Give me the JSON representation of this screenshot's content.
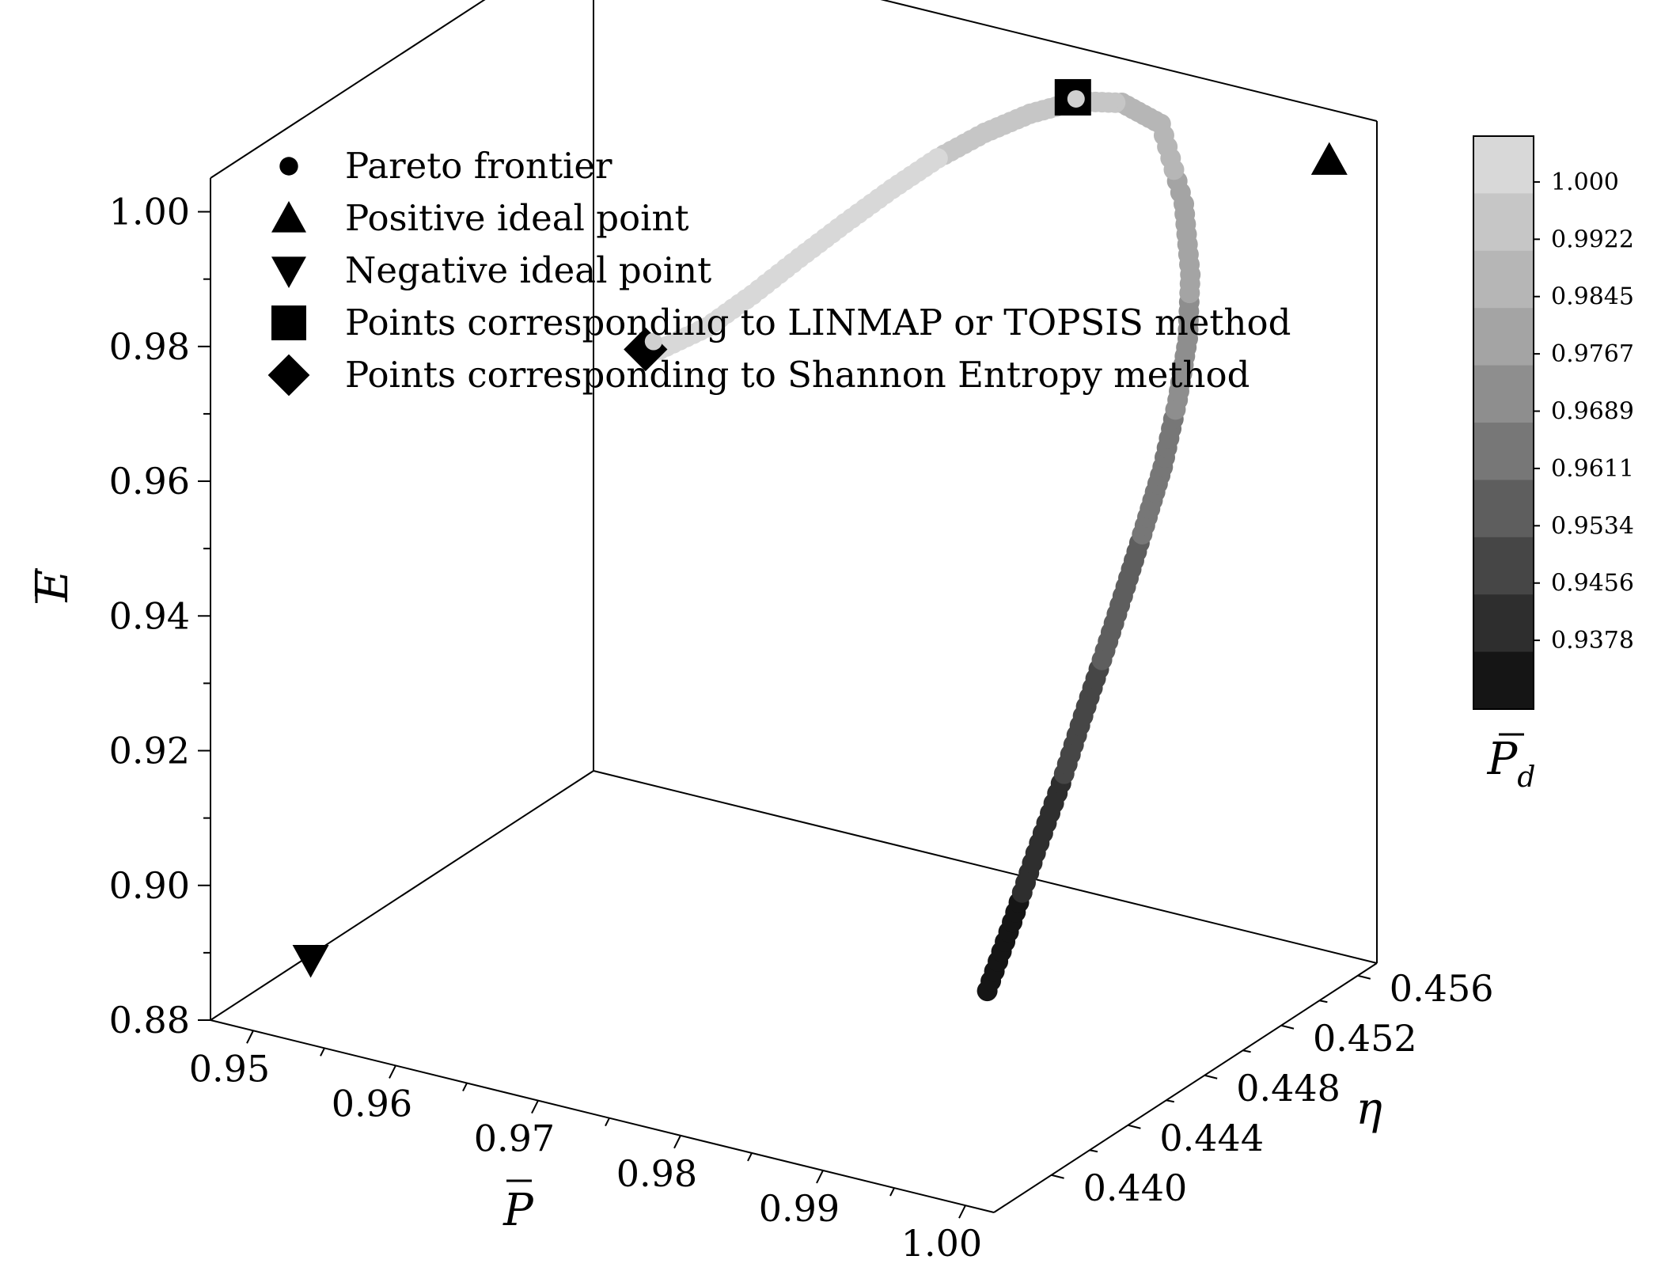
{
  "chart_data": {
    "type": "scatter",
    "title": "",
    "axes": {
      "x": {
        "label": "P",
        "overline": true,
        "range": [
          0.947,
          1.002
        ],
        "ticks": [
          "0.95",
          "0.96",
          "0.97",
          "0.98",
          "0.99",
          "1.00"
        ]
      },
      "y": {
        "label": "η",
        "overline": false,
        "range": [
          0.437,
          0.457
        ],
        "ticks": [
          "0.440",
          "0.444",
          "0.448",
          "0.452",
          "0.456"
        ]
      },
      "z": {
        "label": "E",
        "overline": true,
        "range": [
          0.88,
          1.005
        ],
        "ticks": [
          "0.88",
          "0.90",
          "0.92",
          "0.94",
          "0.96",
          "0.98",
          "1.00"
        ]
      }
    },
    "colorbar": {
      "label": "P",
      "label_subscript": "d",
      "overline": true,
      "ticks": [
        "1.000",
        "0.9922",
        "0.9845",
        "0.9767",
        "0.9689",
        "0.9611",
        "0.9534",
        "0.9456",
        "0.9378"
      ],
      "colors": [
        "#d8d8d8",
        "#c6c6c6",
        "#b6b6b6",
        "#a4a4a4",
        "#8e8e8e",
        "#777777",
        "#5e5e5e",
        "#464646",
        "#2e2e2e",
        "#151515"
      ]
    },
    "legend": {
      "position": "top-left",
      "entries": [
        {
          "marker": "circle",
          "label": "Pareto frontier"
        },
        {
          "marker": "triangle-up",
          "label": "Positive ideal point"
        },
        {
          "marker": "triangle-down",
          "label": "Negative ideal point"
        },
        {
          "marker": "square",
          "label": "Points corresponding to LINMAP or TOPSIS method"
        },
        {
          "marker": "diamond",
          "label": "Points corresponding to Shannon Entropy method"
        }
      ]
    },
    "special_points": [
      {
        "name": "positive-ideal",
        "marker": "triangle-up",
        "P": 1.0,
        "eta": 0.456,
        "E": 1.0
      },
      {
        "name": "negative-ideal",
        "marker": "triangle-down",
        "P": 0.95,
        "eta": 0.44,
        "E": 0.885
      },
      {
        "name": "linmap-topsis",
        "marker": "square",
        "P": 0.982,
        "eta": 0.456,
        "E": 1.0
      },
      {
        "name": "shannon-entropy",
        "marker": "diamond",
        "P": 0.952,
        "eta": 0.456,
        "E": 0.947
      }
    ],
    "pareto_frontier": {
      "marker": "circle",
      "points": [
        {
          "P": 0.9975,
          "eta": 0.44,
          "E": 0.905,
          "Pd": 0.932
        },
        {
          "P": 0.9975,
          "eta": 0.4413,
          "E": 0.9128,
          "Pd": 0.936
        },
        {
          "P": 0.9974,
          "eta": 0.4426,
          "E": 0.9206,
          "Pd": 0.941
        },
        {
          "P": 0.9973,
          "eta": 0.444,
          "E": 0.9283,
          "Pd": 0.945
        },
        {
          "P": 0.9971,
          "eta": 0.4453,
          "E": 0.9358,
          "Pd": 0.95
        },
        {
          "P": 0.9969,
          "eta": 0.4466,
          "E": 0.943,
          "Pd": 0.954
        },
        {
          "P": 0.9966,
          "eta": 0.4479,
          "E": 0.9499,
          "Pd": 0.958
        },
        {
          "P": 0.9962,
          "eta": 0.4492,
          "E": 0.9564,
          "Pd": 0.962
        },
        {
          "P": 0.9957,
          "eta": 0.4505,
          "E": 0.9624,
          "Pd": 0.966
        },
        {
          "P": 0.995,
          "eta": 0.4518,
          "E": 0.9696,
          "Pd": 0.97
        },
        {
          "P": 0.9941,
          "eta": 0.453,
          "E": 0.976,
          "Pd": 0.974
        },
        {
          "P": 0.9928,
          "eta": 0.4541,
          "E": 0.9828,
          "Pd": 0.978
        },
        {
          "P": 0.991,
          "eta": 0.4551,
          "E": 0.9905,
          "Pd": 0.983
        },
        {
          "P": 0.9883,
          "eta": 0.4559,
          "E": 0.9995,
          "Pd": 0.988
        },
        {
          "P": 0.9853,
          "eta": 0.4561,
          "E": 1.0007,
          "Pd": 0.992
        },
        {
          "P": 0.9822,
          "eta": 0.456,
          "E": 0.9995,
          "Pd": 0.996
        },
        {
          "P": 0.979,
          "eta": 0.456,
          "E": 0.996,
          "Pd": 0.998
        },
        {
          "P": 0.9758,
          "eta": 0.456,
          "E": 0.9915,
          "Pd": 0.999
        },
        {
          "P": 0.9725,
          "eta": 0.456,
          "E": 0.986,
          "Pd": 1.0
        },
        {
          "P": 0.9693,
          "eta": 0.456,
          "E": 0.9798,
          "Pd": 1.0
        },
        {
          "P": 0.966,
          "eta": 0.456,
          "E": 0.973,
          "Pd": 1.0
        },
        {
          "P": 0.9628,
          "eta": 0.456,
          "E": 0.9662,
          "Pd": 1.0
        },
        {
          "P": 0.9595,
          "eta": 0.456,
          "E": 0.959,
          "Pd": 1.0
        },
        {
          "P": 0.9563,
          "eta": 0.456,
          "E": 0.9525,
          "Pd": 1.0
        },
        {
          "P": 0.953,
          "eta": 0.456,
          "E": 0.9475,
          "Pd": 1.0
        }
      ]
    }
  }
}
